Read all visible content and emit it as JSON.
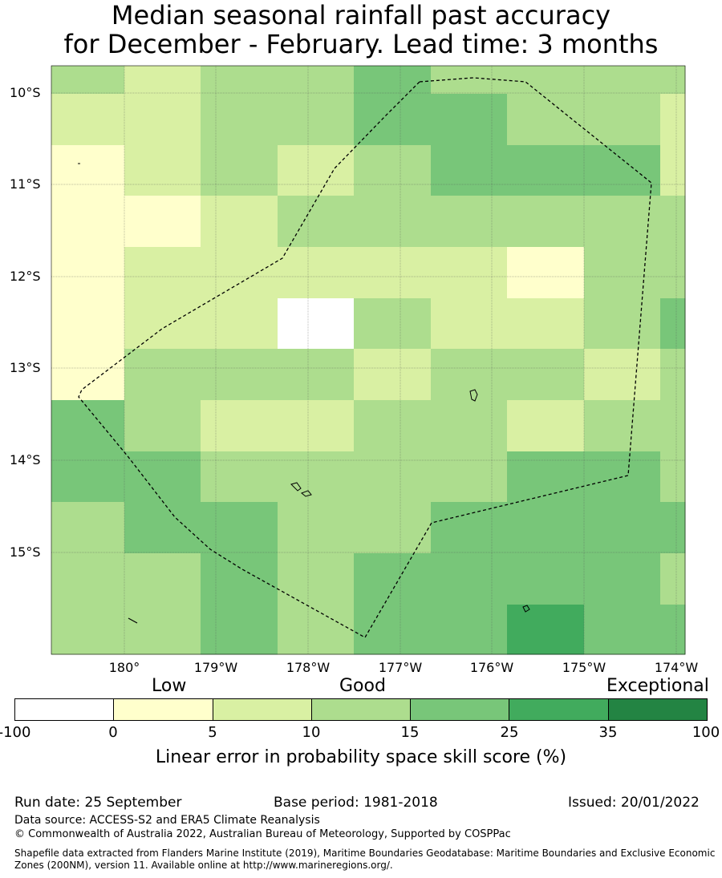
{
  "title": {
    "line1": "Median seasonal rainfall past accuracy",
    "line2": "for December - February. Lead time: 3 months"
  },
  "map": {
    "lat_labels": [
      "10°S",
      "11°S",
      "12°S",
      "13°S",
      "14°S",
      "15°S"
    ],
    "lon_labels": [
      "180°",
      "179°W",
      "178°W",
      "177°W",
      "176°W",
      "175°W",
      "174°W"
    ],
    "grid_values": [
      [
        12,
        7,
        12,
        12,
        20,
        12,
        12,
        12,
        12
      ],
      [
        7,
        7,
        12,
        12,
        20,
        20,
        12,
        12,
        7
      ],
      [
        3,
        7,
        12,
        7,
        12,
        20,
        20,
        20,
        7
      ],
      [
        3,
        3,
        7,
        12,
        12,
        12,
        12,
        12,
        12
      ],
      [
        3,
        7,
        7,
        7,
        7,
        7,
        3,
        12,
        12
      ],
      [
        3,
        7,
        7,
        -10,
        12,
        7,
        7,
        12,
        20
      ],
      [
        3,
        12,
        12,
        12,
        7,
        12,
        12,
        7,
        12
      ],
      [
        20,
        12,
        7,
        7,
        12,
        12,
        7,
        12,
        12
      ],
      [
        20,
        20,
        12,
        12,
        12,
        12,
        20,
        20,
        12
      ],
      [
        12,
        20,
        20,
        12,
        12,
        20,
        20,
        20,
        20
      ],
      [
        12,
        12,
        20,
        12,
        20,
        20,
        20,
        20,
        12
      ],
      [
        12,
        12,
        20,
        12,
        20,
        20,
        30,
        20,
        20
      ]
    ]
  },
  "legend": {
    "bins": [
      -100,
      0,
      5,
      10,
      15,
      25,
      35,
      100
    ],
    "tick_labels": [
      "-100",
      "0",
      "5",
      "10",
      "15",
      "25",
      "35",
      "100"
    ],
    "colors": [
      "#ffffff",
      "#ffffcc",
      "#d9f0a3",
      "#addd8e",
      "#78c679",
      "#41ab5d",
      "#238443"
    ],
    "category_low": "Low",
    "category_good": "Good",
    "category_exceptional": "Exceptional",
    "axis_title": "Linear error in probability space skill score (%)"
  },
  "footer": {
    "run_date": "Run date: 25 September",
    "base_period": "Base period: 1981-2018",
    "issued": "Issued: 20/01/2022",
    "data_source": "Data source: ACCESS-S2 and ERA5 Climate Reanalysis",
    "copyright": "© Commonwealth of Australia 2022, Australian Bureau of Meteorology, Supported by COSPPac",
    "shapefile_line1": "Shapefile data extracted from Flanders Marine Institute (2019), Maritime Boundaries Geodatabase: Maritime Boundaries and Exclusive Economic",
    "shapefile_line2": "Zones (200NM), version 11. Available online at http://www.marineregions.org/."
  }
}
